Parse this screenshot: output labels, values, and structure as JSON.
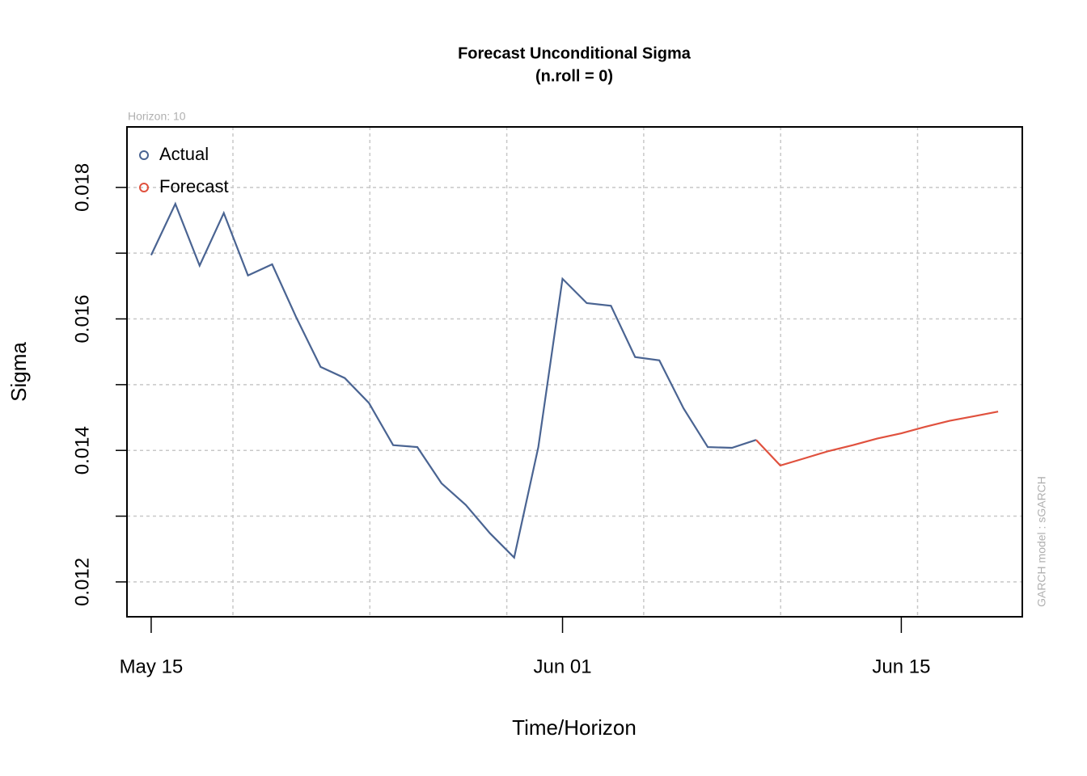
{
  "chart_data": {
    "type": "line",
    "title": "Forecast Unconditional Sigma",
    "subtitle": "(n.roll = 0)",
    "x_label": "Time/Horizon",
    "y_label": "Sigma",
    "annotations": [
      "Horizon: 10",
      "GARCH model :  sGARCH"
    ],
    "xlim": [
      "May 14",
      "Jun 20"
    ],
    "xticks": [
      "May 15",
      "Jun 01",
      "Jun 15"
    ],
    "ylim": [
      0.01147,
      0.01892
    ],
    "yticks": [
      0.012,
      0.014,
      0.016,
      0.018
    ],
    "yminorticks": [
      0.013,
      0.015,
      0.017
    ],
    "grid": true,
    "legend": "topleft",
    "series": [
      {
        "name": "Actual",
        "color": "#4a6492",
        "x": [
          "May 15",
          "May 16",
          "May 17",
          "May 18",
          "May 19",
          "May 20",
          "May 21",
          "May 22",
          "May 23",
          "May 24",
          "May 25",
          "May 26",
          "May 27",
          "May 28",
          "May 29",
          "May 30",
          "May 31",
          "Jun 01",
          "Jun 02",
          "Jun 03",
          "Jun 04",
          "Jun 05",
          "Jun 06",
          "Jun 07",
          "Jun 08",
          "Jun 09"
        ],
        "values": [
          0.01697,
          0.01775,
          0.01681,
          0.01761,
          0.01666,
          0.01683,
          0.01602,
          0.01527,
          0.0151,
          0.01472,
          0.01408,
          0.01405,
          0.0135,
          0.01317,
          0.01274,
          0.01237,
          0.01405,
          0.01661,
          0.01624,
          0.0162,
          0.01542,
          0.01537,
          0.01464,
          0.01405,
          0.01404,
          0.01416
        ]
      },
      {
        "name": "Forecast",
        "color": "#e0513e",
        "x": [
          "Jun 09",
          "Jun 10",
          "Jun 11",
          "Jun 12",
          "Jun 13",
          "Jun 14",
          "Jun 15",
          "Jun 16",
          "Jun 17",
          "Jun 18",
          "Jun 19"
        ],
        "values": [
          0.01416,
          0.01377,
          0.01388,
          0.01399,
          0.01408,
          0.01418,
          0.01426,
          0.01436,
          0.01445,
          0.01452,
          0.01459
        ]
      }
    ]
  }
}
